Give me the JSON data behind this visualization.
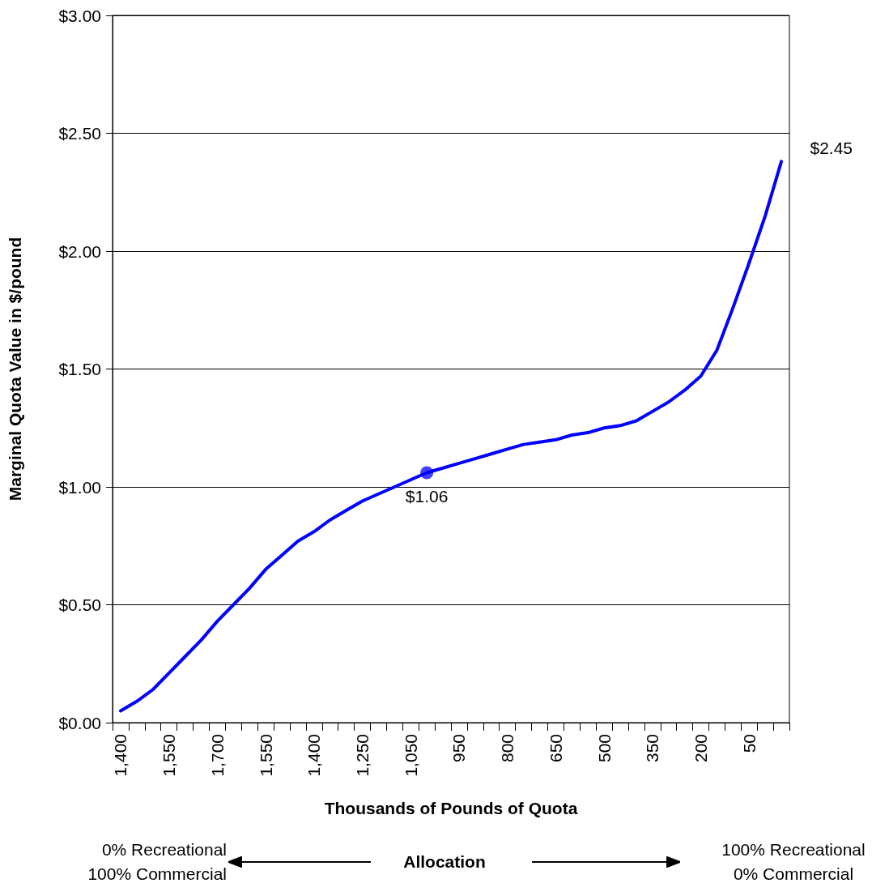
{
  "chart_data": {
    "type": "line",
    "xlabel": "Thousands of Pounds of Quota",
    "ylabel": "Marginal Quota Value in $/pound",
    "categories": [
      "1,400",
      null,
      null,
      "1,550",
      null,
      null,
      "1,700",
      null,
      null,
      "1,550",
      null,
      null,
      "1,400",
      null,
      null,
      "1,250",
      null,
      null,
      "1,050",
      null,
      null,
      "950",
      null,
      null,
      "800",
      null,
      null,
      "650",
      null,
      null,
      "500",
      null,
      null,
      "350",
      null,
      null,
      "200",
      null,
      null,
      "50",
      null,
      null
    ],
    "series": [
      {
        "color": "#0000ff",
        "values": [
          0.05,
          0.09,
          0.14,
          0.21,
          0.28,
          0.35,
          0.43,
          0.5,
          0.57,
          0.65,
          0.71,
          0.77,
          0.81,
          0.86,
          0.9,
          0.94,
          0.97,
          1.0,
          1.03,
          1.06,
          1.08,
          1.1,
          1.12,
          1.14,
          1.16,
          1.18,
          1.19,
          1.2,
          1.22,
          1.23,
          1.25,
          1.26,
          1.28,
          1.32,
          1.36,
          1.41,
          1.47,
          1.58,
          1.76,
          1.95,
          2.15,
          2.38
        ],
        "value_labels": [
          null,
          null,
          null,
          null,
          null,
          null,
          null,
          null,
          null,
          null,
          null,
          null,
          null,
          null,
          null,
          null,
          null,
          null,
          null,
          "$1.06",
          null,
          null,
          null,
          null,
          null,
          null,
          null,
          null,
          null,
          null,
          null,
          null,
          null,
          null,
          null,
          null,
          null,
          null,
          null,
          null,
          null,
          null
        ]
      }
    ],
    "ylim": [
      0,
      3
    ],
    "yticks": [
      {
        "value": 0,
        "label": "$0.00"
      },
      {
        "value": 0.5,
        "label": "$0.50"
      },
      {
        "value": 1,
        "label": "$1.00"
      },
      {
        "value": 1.5,
        "label": "$1.50"
      },
      {
        "value": 2,
        "label": "$2.00"
      },
      {
        "value": 2.5,
        "label": "$2.50"
      },
      {
        "value": 3,
        "label": "$3.00"
      }
    ],
    "grid": "y",
    "marker": "none",
    "line_style": "solid",
    "annotations": [
      "$2.45",
      "0% Recreational\n100% Commercial",
      "Allocation",
      "100% Recreational\n0% Commercial"
    ]
  }
}
